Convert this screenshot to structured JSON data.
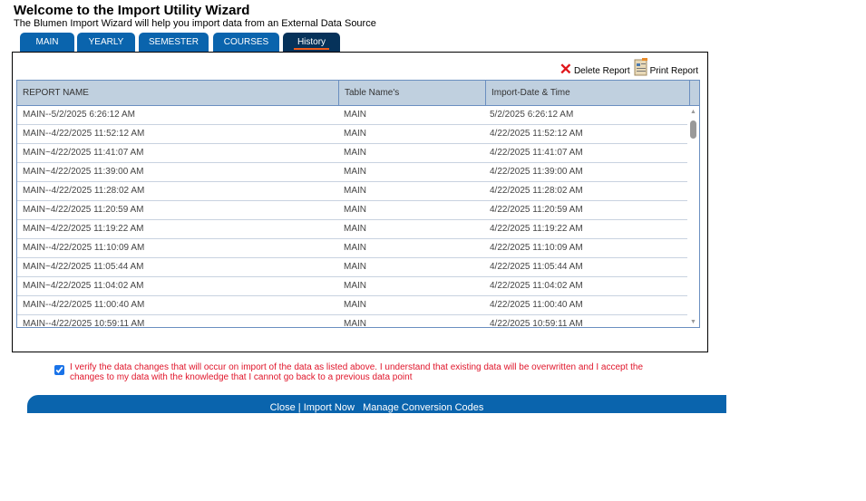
{
  "header": {
    "title": "Welcome to the Import Utility Wizard",
    "subtitle": "The Blumen Import Wizard will help you import data from an External Data Source"
  },
  "tabs": [
    {
      "label": "MAIN"
    },
    {
      "label": "YEARLY"
    },
    {
      "label": "SEMESTER"
    },
    {
      "label": "COURSES"
    },
    {
      "label": "History",
      "active": true
    }
  ],
  "actions": {
    "delete": "Delete Report",
    "print": "Print Report",
    "delete_color": "#e0161b"
  },
  "table": {
    "columns": [
      "REPORT NAME",
      "Table Name's",
      "Import-Date & Time"
    ],
    "rows": [
      [
        "MAIN--5/2/2025 6:26:12 AM",
        "MAIN",
        "5/2/2025 6:26:12 AM"
      ],
      [
        "MAIN--4/22/2025 11:52:12 AM",
        "MAIN",
        "4/22/2025 11:52:12 AM"
      ],
      [
        "MAIN~4/22/2025 11:41:07 AM",
        "MAIN",
        "4/22/2025 11:41:07 AM"
      ],
      [
        "MAIN~4/22/2025 11:39:00 AM",
        "MAIN",
        "4/22/2025 11:39:00 AM"
      ],
      [
        "MAIN--4/22/2025 11:28:02 AM",
        "MAIN",
        "4/22/2025 11:28:02 AM"
      ],
      [
        "MAIN~4/22/2025 11:20:59 AM",
        "MAIN",
        "4/22/2025 11:20:59 AM"
      ],
      [
        "MAIN~4/22/2025 11:19:22 AM",
        "MAIN",
        "4/22/2025 11:19:22 AM"
      ],
      [
        "MAIN--4/22/2025 11:10:09 AM",
        "MAIN",
        "4/22/2025 11:10:09 AM"
      ],
      [
        "MAIN~4/22/2025 11:05:44 AM",
        "MAIN",
        "4/22/2025 11:05:44 AM"
      ],
      [
        "MAIN~4/22/2025 11:04:02 AM",
        "MAIN",
        "4/22/2025 11:04:02 AM"
      ],
      [
        "MAIN--4/22/2025 11:00:40 AM",
        "MAIN",
        "4/22/2025 11:00:40 AM"
      ],
      [
        "MAIN--4/22/2025 10:59:11 AM",
        "MAIN",
        "4/22/2025 10:59:11 AM"
      ]
    ]
  },
  "verify": {
    "checked": true,
    "text": "I verify the data changes that will occur on import of the data as listed above. I understand that existing data will be overwritten and I accept the changes to my data with the knowledge that I cannot go back to a previous data point"
  },
  "footer": {
    "close": "Close",
    "sep": "|",
    "import": "Import Now",
    "manage": "Manage Conversion Codes"
  }
}
